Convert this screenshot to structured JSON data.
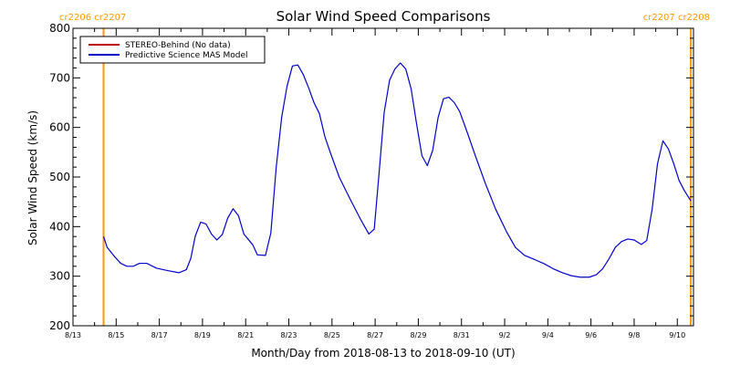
{
  "chart_data": {
    "type": "line",
    "title": "Solar Wind Speed Comparisons",
    "xlabel": "Month/Day from 2018-08-13 to 2018-09-10 (UT)",
    "ylabel": "Solar Wind Speed (km/s)",
    "xlim": [
      "2018-08-13",
      "2018-09-10T18:00"
    ],
    "ylim": [
      200,
      800
    ],
    "y_ticks": [
      200,
      300,
      400,
      500,
      600,
      700,
      800
    ],
    "x_ticks": [
      {
        "date": "2018-08-13",
        "label": "8/13"
      },
      {
        "date": "2018-08-15",
        "label": "8/15"
      },
      {
        "date": "2018-08-17",
        "label": "8/17"
      },
      {
        "date": "2018-08-19",
        "label": "8/19"
      },
      {
        "date": "2018-08-21",
        "label": "8/21"
      },
      {
        "date": "2018-08-23",
        "label": "8/23"
      },
      {
        "date": "2018-08-25",
        "label": "8/25"
      },
      {
        "date": "2018-08-27",
        "label": "8/27"
      },
      {
        "date": "2018-08-29",
        "label": "8/29"
      },
      {
        "date": "2018-08-31",
        "label": "8/31"
      },
      {
        "date": "2018-09-02",
        "label": "9/2"
      },
      {
        "date": "2018-09-04",
        "label": "9/4"
      },
      {
        "date": "2018-09-06",
        "label": "9/6"
      },
      {
        "date": "2018-09-08",
        "label": "9/8"
      },
      {
        "date": "2018-09-10",
        "label": "9/10"
      }
    ],
    "legend": {
      "position": "top-left",
      "entries": [
        {
          "label": "STEREO-Behind (No data)",
          "color": "#c00000"
        },
        {
          "label": "Predictive Science MAS Model",
          "color": "#0000cc"
        }
      ]
    },
    "markers": [
      {
        "x": "2018-08-14T10:00",
        "label": "cr2206 cr2207",
        "color": "#ff9900"
      },
      {
        "x": "2018-09-10T15:00",
        "label": "cr2207 cr2208",
        "color": "#ff9900"
      }
    ],
    "series": [
      {
        "name": "Predictive Science MAS Model",
        "color": "#0000cc",
        "points": [
          [
            "2018-08-14T10:00",
            380
          ],
          [
            "2018-08-14T14:00",
            358
          ],
          [
            "2018-08-14T22:00",
            340
          ],
          [
            "2018-08-15T05:00",
            326
          ],
          [
            "2018-08-15T12:00",
            320
          ],
          [
            "2018-08-15T19:00",
            320
          ],
          [
            "2018-08-16T02:00",
            326
          ],
          [
            "2018-08-16T10:00",
            326
          ],
          [
            "2018-08-16T21:00",
            316
          ],
          [
            "2018-08-17T10:00",
            311
          ],
          [
            "2018-08-17T22:00",
            307
          ],
          [
            "2018-08-18T06:00",
            313
          ],
          [
            "2018-08-18T11:00",
            336
          ],
          [
            "2018-08-18T16:00",
            381
          ],
          [
            "2018-08-18T22:00",
            409
          ],
          [
            "2018-08-19T04:00",
            405
          ],
          [
            "2018-08-19T10:00",
            385
          ],
          [
            "2018-08-19T16:00",
            373
          ],
          [
            "2018-08-19T22:00",
            384
          ],
          [
            "2018-08-20T04:00",
            417
          ],
          [
            "2018-08-20T10:00",
            436
          ],
          [
            "2018-08-20T16:00",
            422
          ],
          [
            "2018-08-20T22:00",
            385
          ],
          [
            "2018-08-21T08:00",
            363
          ],
          [
            "2018-08-21T13:00",
            343
          ],
          [
            "2018-08-21T22:00",
            342
          ],
          [
            "2018-08-22T04:00",
            387
          ],
          [
            "2018-08-22T10:00",
            520
          ],
          [
            "2018-08-22T16:00",
            620
          ],
          [
            "2018-08-22T22:00",
            683
          ],
          [
            "2018-08-23T04:00",
            724
          ],
          [
            "2018-08-23T10:00",
            726
          ],
          [
            "2018-08-23T16:00",
            707
          ],
          [
            "2018-08-23T22:00",
            680
          ],
          [
            "2018-08-24T04:00",
            650
          ],
          [
            "2018-08-24T10:00",
            628
          ],
          [
            "2018-08-24T16:00",
            582
          ],
          [
            "2018-08-24T22:00",
            550
          ],
          [
            "2018-08-25T08:00",
            500
          ],
          [
            "2018-08-25T20:00",
            456
          ],
          [
            "2018-08-26T08:00",
            414
          ],
          [
            "2018-08-26T17:00",
            385
          ],
          [
            "2018-08-26T23:00",
            395
          ],
          [
            "2018-08-27T04:00",
            500
          ],
          [
            "2018-08-27T10:00",
            630
          ],
          [
            "2018-08-27T16:00",
            695
          ],
          [
            "2018-08-27T22:00",
            718
          ],
          [
            "2018-08-28T04:00",
            730
          ],
          [
            "2018-08-28T10:00",
            718
          ],
          [
            "2018-08-28T16:00",
            678
          ],
          [
            "2018-08-28T22:00",
            608
          ],
          [
            "2018-08-29T04:00",
            543
          ],
          [
            "2018-08-29T10:00",
            523
          ],
          [
            "2018-08-29T16:00",
            554
          ],
          [
            "2018-08-29T22:00",
            620
          ],
          [
            "2018-08-30T04:00",
            658
          ],
          [
            "2018-08-30T10:00",
            661
          ],
          [
            "2018-08-30T16:00",
            650
          ],
          [
            "2018-08-30T22:00",
            632
          ],
          [
            "2018-08-31T06:00",
            592
          ],
          [
            "2018-08-31T16:00",
            540
          ],
          [
            "2018-09-01T03:00",
            485
          ],
          [
            "2018-09-01T14:00",
            435
          ],
          [
            "2018-09-02T02:00",
            390
          ],
          [
            "2018-09-02T12:00",
            358
          ],
          [
            "2018-09-02T22:00",
            342
          ],
          [
            "2018-09-03T10:00",
            333
          ],
          [
            "2018-09-03T20:00",
            325
          ],
          [
            "2018-09-04T06:00",
            315
          ],
          [
            "2018-09-04T16:00",
            307
          ],
          [
            "2018-09-05T02:00",
            301
          ],
          [
            "2018-09-05T12:00",
            298
          ],
          [
            "2018-09-05T22:00",
            298
          ],
          [
            "2018-09-06T06:00",
            303
          ],
          [
            "2018-09-06T13:00",
            315
          ],
          [
            "2018-09-06T20:00",
            335
          ],
          [
            "2018-09-07T03:00",
            358
          ],
          [
            "2018-09-07T10:00",
            370
          ],
          [
            "2018-09-07T17:00",
            375
          ],
          [
            "2018-09-08T00:00",
            373
          ],
          [
            "2018-09-08T08:00",
            364
          ],
          [
            "2018-09-08T14:00",
            372
          ],
          [
            "2018-09-08T20:00",
            435
          ],
          [
            "2018-09-09T02:00",
            527
          ],
          [
            "2018-09-09T08:00",
            573
          ],
          [
            "2018-09-09T14:00",
            557
          ],
          [
            "2018-09-09T20:00",
            527
          ],
          [
            "2018-09-10T02:00",
            493
          ],
          [
            "2018-09-10T08:00",
            472
          ],
          [
            "2018-09-10T15:00",
            452
          ]
        ]
      }
    ]
  }
}
